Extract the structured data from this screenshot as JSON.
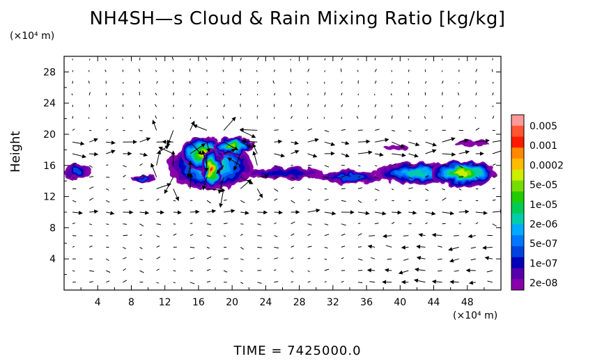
{
  "chart_data": {
    "type": "heatmap",
    "title": "NH4SH—s Cloud & Rain Mixing Ratio [kg/kg]",
    "ylabel": "Height",
    "y_unit": "(×10⁴ m)",
    "x_unit": "(×10⁴ m)",
    "xlim": [
      0,
      52
    ],
    "ylim": [
      0,
      30
    ],
    "x_ticks": [
      "4",
      "8",
      "12",
      "16",
      "20",
      "24",
      "28",
      "32",
      "36",
      "40",
      "44",
      "48"
    ],
    "x_tick_values": [
      4,
      8,
      12,
      16,
      20,
      24,
      28,
      32,
      36,
      40,
      44,
      48
    ],
    "y_ticks": [
      "4",
      "8",
      "12",
      "16",
      "20",
      "24",
      "28"
    ],
    "y_tick_values": [
      4,
      8,
      12,
      16,
      20,
      24,
      28
    ],
    "colorbar": {
      "labels": [
        "0.005",
        "0.001",
        "0.0002",
        "5e-05",
        "1e-05",
        "2e-06",
        "5e-07",
        "1e-07",
        "2e-08"
      ],
      "colors": [
        "#ff9999",
        "#ff5533",
        "#ff1a00",
        "#ff8800",
        "#ffbb00",
        "#ccee00",
        "#77dd00",
        "#22cc00",
        "#00cc55",
        "#00ccaa",
        "#00aaff",
        "#0077ff",
        "#0044dd",
        "#0000bb",
        "#5500aa",
        "#8800aa"
      ]
    },
    "field_blobs": [
      {
        "x": 1.5,
        "y": 15.2,
        "rx": 1.5,
        "ry": 1.0,
        "level": 12
      },
      {
        "x": 9.5,
        "y": 14.3,
        "rx": 1.5,
        "ry": 0.5,
        "level": 12
      },
      {
        "x": 17.5,
        "y": 16.0,
        "rx": 5.0,
        "ry": 3.2,
        "level": 8
      },
      {
        "x": 16.5,
        "y": 17.5,
        "rx": 2.5,
        "ry": 2.2,
        "level": 5
      },
      {
        "x": 17.5,
        "y": 15.5,
        "rx": 1.2,
        "ry": 2.5,
        "level": 2
      },
      {
        "x": 20.0,
        "y": 18.5,
        "rx": 2.5,
        "ry": 1.2,
        "level": 6
      },
      {
        "x": 26.0,
        "y": 15.0,
        "rx": 5.0,
        "ry": 0.8,
        "level": 13
      },
      {
        "x": 34.0,
        "y": 14.5,
        "rx": 4.0,
        "ry": 0.8,
        "level": 12
      },
      {
        "x": 42.0,
        "y": 15.0,
        "rx": 5.0,
        "ry": 1.4,
        "level": 9
      },
      {
        "x": 47.5,
        "y": 15.0,
        "rx": 4.0,
        "ry": 1.6,
        "level": 5
      },
      {
        "x": 39.5,
        "y": 18.3,
        "rx": 1.5,
        "ry": 0.4,
        "level": 15
      },
      {
        "x": 48.5,
        "y": 18.8,
        "rx": 2.0,
        "ry": 0.4,
        "level": 15
      }
    ]
  },
  "footer": {
    "time_label": "TIME  =  7425000.0"
  }
}
